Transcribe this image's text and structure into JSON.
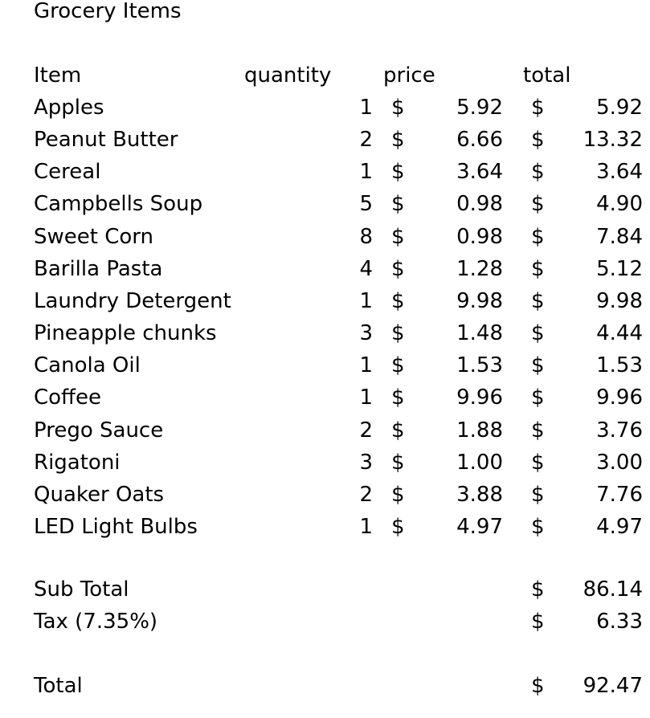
{
  "title": "Grocery Items",
  "headers": {
    "item": "Item",
    "quantity": "quantity",
    "price": "price",
    "total": "total"
  },
  "currency": "$",
  "items": [
    {
      "name": "Apples",
      "qty": "1",
      "price": "5.92",
      "total": "5.92"
    },
    {
      "name": "Peanut Butter",
      "qty": "2",
      "price": "6.66",
      "total": "13.32"
    },
    {
      "name": "Cereal",
      "qty": "1",
      "price": "3.64",
      "total": "3.64"
    },
    {
      "name": "Campbells Soup",
      "qty": "5",
      "price": "0.98",
      "total": "4.90"
    },
    {
      "name": "Sweet Corn",
      "qty": "8",
      "price": "0.98",
      "total": "7.84"
    },
    {
      "name": "Barilla Pasta",
      "qty": "4",
      "price": "1.28",
      "total": "5.12"
    },
    {
      "name": "Laundry Detergent",
      "qty": "1",
      "price": "9.98",
      "total": "9.98"
    },
    {
      "name": "Pineapple chunks",
      "qty": "3",
      "price": "1.48",
      "total": "4.44"
    },
    {
      "name": "Canola Oil",
      "qty": "1",
      "price": "1.53",
      "total": "1.53"
    },
    {
      "name": "Coffee",
      "qty": "1",
      "price": "9.96",
      "total": "9.96"
    },
    {
      "name": "Prego Sauce",
      "qty": "2",
      "price": "1.88",
      "total": "3.76"
    },
    {
      "name": "Rigatoni",
      "qty": "3",
      "price": "1.00",
      "total": "3.00"
    },
    {
      "name": "Quaker Oats",
      "qty": "2",
      "price": "3.88",
      "total": "7.76"
    },
    {
      "name": "LED Light Bulbs",
      "qty": "1",
      "price": "4.97",
      "total": "4.97"
    }
  ],
  "summary": {
    "subtotal_label": "Sub Total",
    "subtotal_value": "86.14",
    "tax_label": "Tax (7.35%)",
    "tax_value": "6.33",
    "total_label": "Total",
    "total_value": "92.47"
  }
}
